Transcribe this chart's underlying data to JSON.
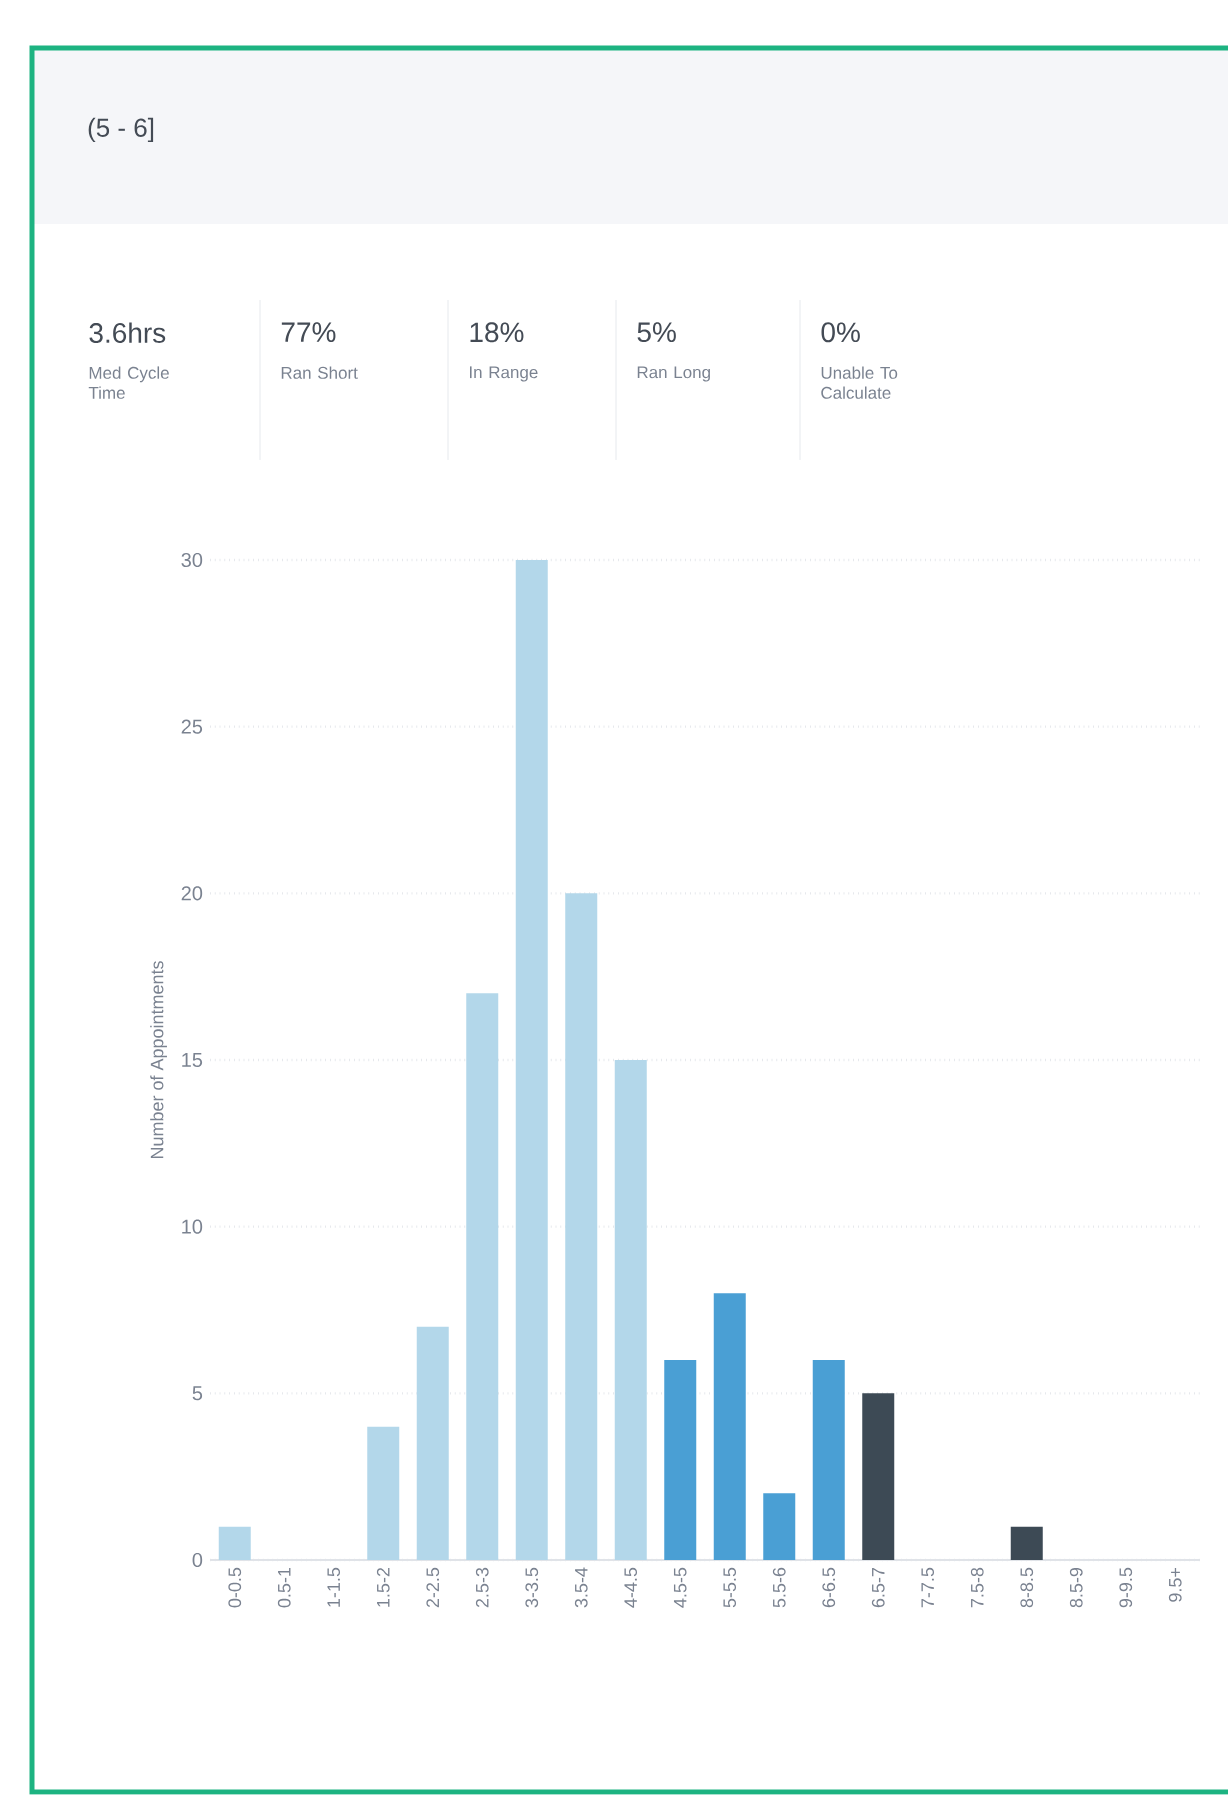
{
  "chart_data": {
    "type": "bar",
    "title": "(5 - 6]",
    "annotations": [
      "3.6hrs",
      "Med Cycle Time",
      "77%",
      "Ran Short",
      "18%",
      "In Range",
      "5%",
      "Ran Long",
      "0%",
      "Unable To Calculate"
    ],
    "ylabel": "Number of Appointments",
    "categories": [
      "0-0.5",
      "0.5-1",
      "1-1.5",
      "1.5-2",
      "2-2.5",
      "2.5-3",
      "3-3.5",
      "3.5-4",
      "4-4.5",
      "4.5-5",
      "5-5.5",
      "5.5-6",
      "6-6.5",
      "6.5-7",
      "7-7.5",
      "7.5-8",
      "8-8.5",
      "8.5-9",
      "9-9.5",
      "9.5+"
    ],
    "values": [
      1,
      0,
      0,
      4,
      7,
      17,
      30,
      20,
      15,
      6,
      8,
      2,
      6,
      5,
      0,
      0,
      1,
      0,
      0,
      0
    ],
    "colors": [
      "#b3d7ea",
      "#b3d7ea",
      "#b3d7ea",
      "#b3d7ea",
      "#b3d7ea",
      "#b3d7ea",
      "#b3d7ea",
      "#b3d7ea",
      "#b3d7ea",
      "#4a9fd4",
      "#4a9fd4",
      "#4a9fd4",
      "#4a9fd4",
      "#3d4a55",
      "#3d4a55",
      "#3d4a55",
      "#3d4a55",
      "#3d4a55",
      "#3d4a55",
      "#3d4a55"
    ],
    "ylim": [
      0,
      30
    ],
    "yticks": [
      0,
      5,
      10,
      15,
      20,
      25,
      30
    ],
    "grid": "y"
  }
}
